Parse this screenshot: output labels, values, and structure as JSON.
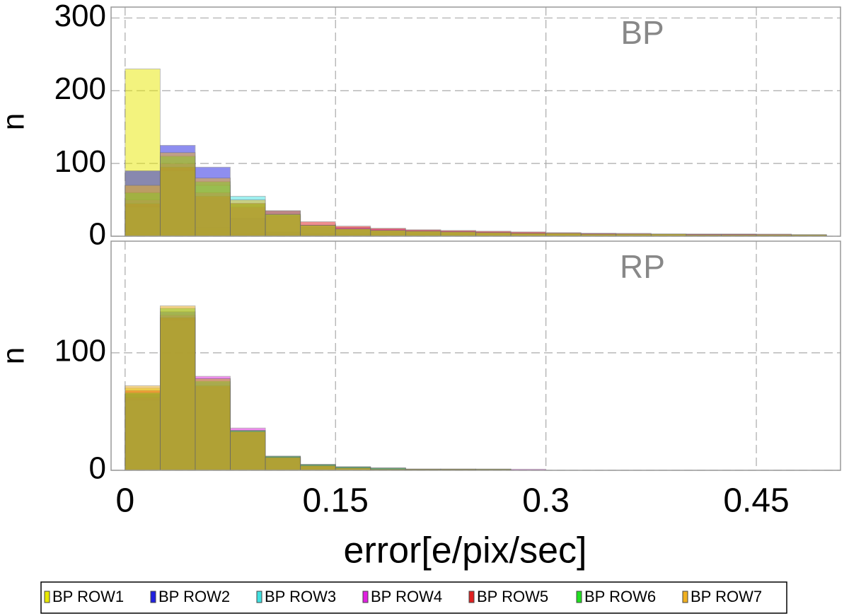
{
  "chart_data": [
    {
      "type": "histogram",
      "label": "BP",
      "ylabel": "n",
      "xlim": [
        -0.01,
        0.51
      ],
      "ylim": [
        0,
        315
      ],
      "yticks": [
        0,
        100,
        200,
        300
      ],
      "grid": true,
      "bins": [
        0,
        0.025,
        0.05,
        0.075,
        0.1,
        0.125,
        0.15,
        0.175,
        0.2,
        0.225,
        0.25,
        0.275,
        0.3,
        0.325,
        0.35,
        0.375,
        0.4,
        0.425,
        0.45,
        0.475,
        0.5
      ],
      "series": [
        {
          "name": "BP ROW1",
          "color": "#e8e800",
          "values": [
            230,
            95,
            12,
            3,
            2,
            1,
            1,
            1,
            1,
            1,
            1,
            1,
            1,
            1,
            1,
            1,
            1,
            1,
            1,
            1
          ]
        },
        {
          "name": "BP ROW2",
          "color": "#2020e0",
          "values": [
            90,
            125,
            95,
            25,
            6,
            4,
            3,
            2,
            2,
            2,
            1,
            1,
            1,
            1,
            1,
            1,
            1,
            1,
            1,
            1
          ]
        },
        {
          "name": "BP ROW3",
          "color": "#40e0e0",
          "values": [
            40,
            90,
            70,
            55,
            35,
            12,
            8,
            6,
            5,
            4,
            3,
            3,
            2,
            2,
            2,
            2,
            2,
            2,
            2,
            2
          ]
        },
        {
          "name": "BP ROW4",
          "color": "#e020e0",
          "values": [
            50,
            100,
            60,
            40,
            28,
            15,
            12,
            10,
            8,
            7,
            6,
            5,
            4,
            4,
            3,
            3,
            3,
            3,
            2,
            2
          ]
        },
        {
          "name": "BP ROW5",
          "color": "#e02020",
          "values": [
            45,
            95,
            55,
            45,
            35,
            20,
            14,
            11,
            9,
            8,
            7,
            6,
            5,
            4,
            4,
            3,
            3,
            3,
            3,
            2
          ]
        },
        {
          "name": "BP ROW6",
          "color": "#20e020",
          "values": [
            60,
            110,
            75,
            45,
            30,
            15,
            10,
            8,
            7,
            6,
            5,
            4,
            4,
            3,
            3,
            3,
            2,
            2,
            2,
            2
          ]
        },
        {
          "name": "BP ROW7",
          "color": "#f0b020",
          "values": [
            70,
            115,
            80,
            50,
            30,
            15,
            10,
            8,
            7,
            6,
            5,
            4,
            4,
            3,
            3,
            3,
            2,
            2,
            2,
            2
          ]
        }
      ]
    },
    {
      "type": "histogram",
      "label": "RP",
      "ylabel": "n",
      "xlabel": "error[e/pix/sec]",
      "xlim": [
        -0.01,
        0.51
      ],
      "xticks": [
        0,
        0.15,
        0.3,
        0.45
      ],
      "ylim": [
        0,
        195
      ],
      "yticks": [
        0,
        100
      ],
      "grid": true,
      "bins": [
        0,
        0.025,
        0.05,
        0.075,
        0.1,
        0.125,
        0.15,
        0.175,
        0.2,
        0.225,
        0.25,
        0.275,
        0.3,
        0.325,
        0.35,
        0.375,
        0.4,
        0.425,
        0.45,
        0.475,
        0.5
      ],
      "series": [
        {
          "color": "#e8e800",
          "values": [
            70,
            130,
            70,
            30,
            10,
            4,
            2,
            1,
            1,
            1,
            1,
            0,
            0,
            0,
            0,
            0,
            0,
            0,
            0,
            0
          ]
        },
        {
          "color": "#2020e0",
          "values": [
            65,
            135,
            75,
            32,
            11,
            4,
            2,
            1,
            1,
            1,
            0,
            0,
            0,
            0,
            0,
            0,
            0,
            0,
            0,
            0
          ]
        },
        {
          "color": "#40e0e0",
          "values": [
            60,
            128,
            78,
            34,
            12,
            5,
            3,
            2,
            1,
            1,
            1,
            0,
            0,
            0,
            0,
            0,
            0,
            0,
            0,
            0
          ]
        },
        {
          "color": "#e020e0",
          "values": [
            62,
            132,
            80,
            36,
            12,
            5,
            3,
            2,
            1,
            1,
            1,
            1,
            0,
            0,
            0,
            0,
            0,
            0,
            0,
            0
          ]
        },
        {
          "color": "#e02020",
          "values": [
            68,
            130,
            72,
            33,
            11,
            4,
            2,
            1,
            1,
            1,
            0,
            0,
            0,
            0,
            0,
            0,
            0,
            0,
            0,
            0
          ]
        },
        {
          "color": "#20e020",
          "values": [
            66,
            138,
            76,
            34,
            12,
            5,
            3,
            2,
            1,
            1,
            1,
            0,
            0,
            0,
            0,
            0,
            0,
            0,
            0,
            0
          ]
        },
        {
          "color": "#f0b020",
          "values": [
            72,
            140,
            78,
            33,
            11,
            4,
            2,
            1,
            1,
            1,
            1,
            0,
            0,
            0,
            0,
            0,
            0,
            0,
            0,
            0
          ]
        }
      ]
    }
  ]
}
